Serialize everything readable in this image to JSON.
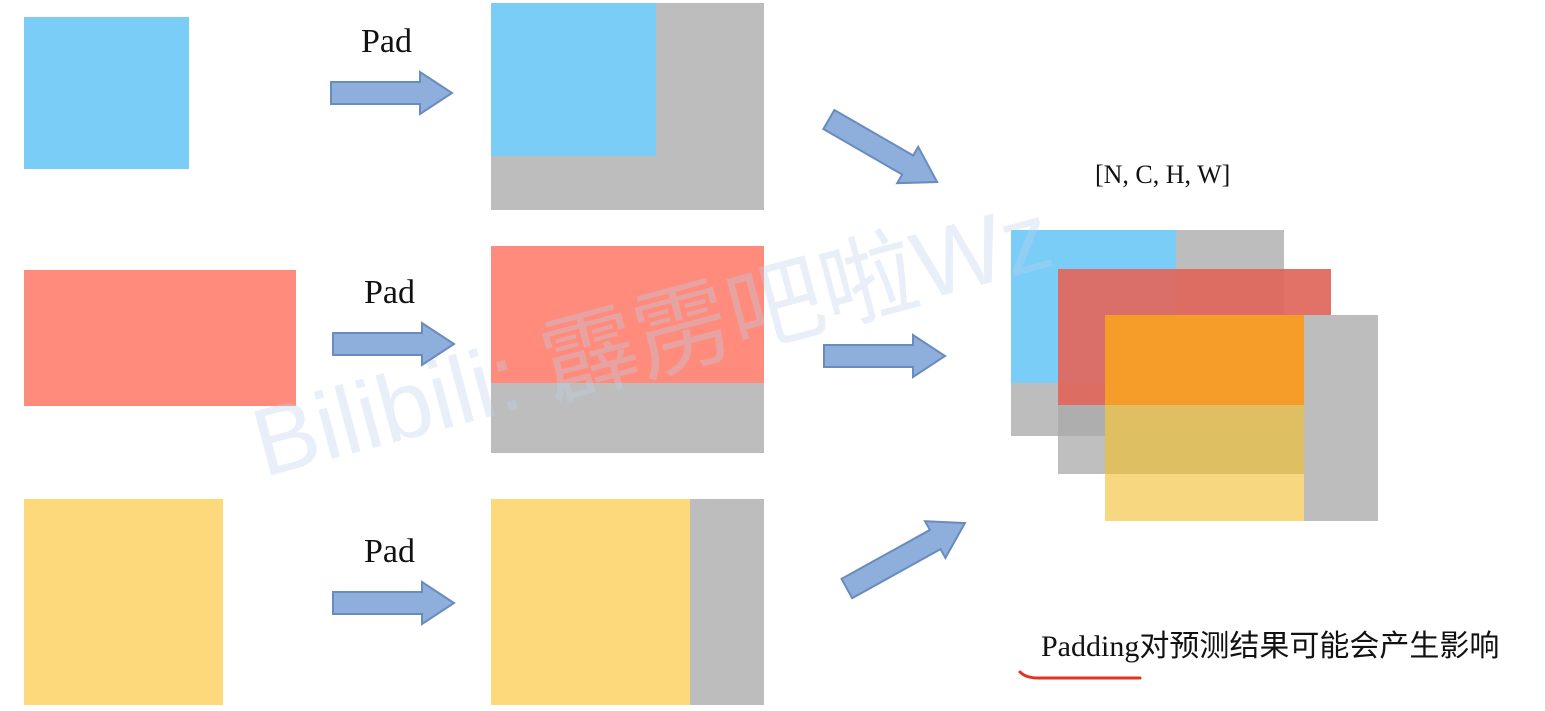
{
  "colors": {
    "blue": "#79cdf7",
    "red": "#fe8b7c",
    "yellow": "#fdd97c",
    "gray": "#bdbdbd",
    "orange": "#f5961f",
    "arrow_fill": "#8eaedb",
    "arrow_stroke": "#6a8bbd",
    "underline": "#e0341f"
  },
  "rows": [
    {
      "pad_label": "Pad"
    },
    {
      "pad_label": "Pad"
    },
    {
      "pad_label": "Pad"
    }
  ],
  "batch": {
    "shape_label": "[N, C, H, W]"
  },
  "note": {
    "text": "Padding对预测结果可能会产生影响"
  },
  "watermark": {
    "text": "Bilibili: 霹雳吧啦Wz"
  }
}
